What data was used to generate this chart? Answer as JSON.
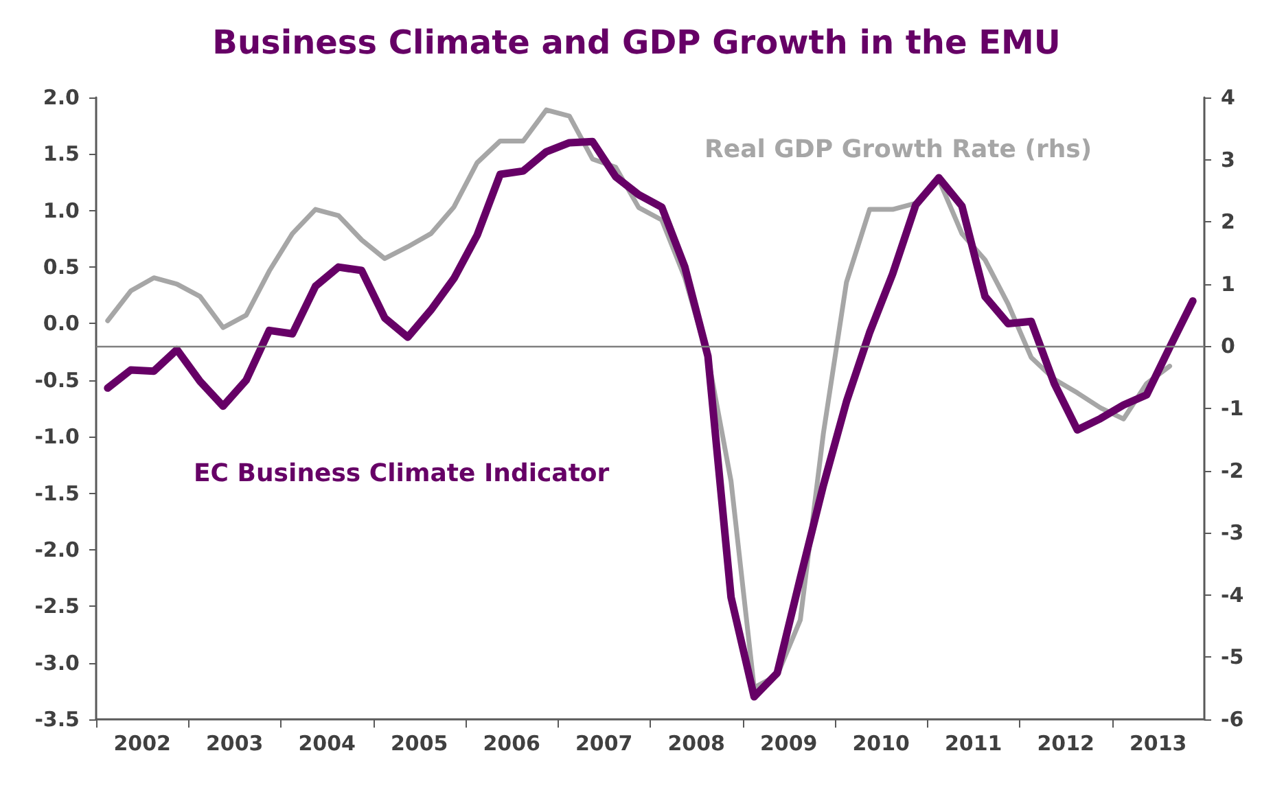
{
  "chart_data": {
    "type": "line",
    "title": "Business Climate and GDP Growth in the EMU",
    "x": [
      2002.125,
      2002.375,
      2002.625,
      2002.875,
      2003.125,
      2003.375,
      2003.625,
      2003.875,
      2004.125,
      2004.375,
      2004.625,
      2004.875,
      2005.125,
      2005.375,
      2005.625,
      2005.875,
      2006.125,
      2006.375,
      2006.625,
      2006.875,
      2007.125,
      2007.375,
      2007.625,
      2007.875,
      2008.125,
      2008.375,
      2008.625,
      2008.875,
      2009.125,
      2009.375,
      2009.625,
      2009.875,
      2010.125,
      2010.375,
      2010.625,
      2010.875,
      2011.125,
      2011.375,
      2011.625,
      2011.875,
      2012.125,
      2012.375,
      2012.625,
      2012.875,
      2013.125,
      2013.375,
      2013.625,
      2013.875
    ],
    "series": [
      {
        "name": "Real GDP Growth Rate (rhs)",
        "color": "#a6a6a6",
        "axis": "y2",
        "values": [
          0.41,
          0.89,
          1.1,
          1.0,
          0.8,
          0.3,
          0.5,
          1.21,
          1.81,
          2.2,
          2.1,
          1.71,
          1.41,
          1.6,
          1.81,
          2.24,
          2.95,
          3.3,
          3.3,
          3.8,
          3.7,
          3.01,
          2.88,
          2.23,
          2.03,
          1.1,
          -0.18,
          -2.17,
          -5.49,
          -5.29,
          -4.4,
          -1.4,
          1.03,
          2.2,
          2.2,
          2.3,
          2.68,
          1.81,
          1.39,
          0.68,
          -0.18,
          -0.53,
          -0.75,
          -0.99,
          -1.17,
          -0.6,
          -0.32,
          null
        ]
      },
      {
        "name": "EC Business Climate Indicator",
        "color": "#660066",
        "values": [
          -0.57,
          -0.41,
          -0.42,
          -0.23,
          -0.51,
          -0.73,
          -0.5,
          -0.06,
          -0.09,
          0.33,
          0.5,
          0.47,
          0.05,
          -0.12,
          0.12,
          0.4,
          0.78,
          1.32,
          1.35,
          1.52,
          1.6,
          1.61,
          1.3,
          1.14,
          1.03,
          0.5,
          -0.29,
          -2.42,
          -3.3,
          -3.09,
          -2.25,
          -1.43,
          -0.69,
          -0.08,
          0.44,
          1.05,
          1.29,
          1.04,
          0.24,
          0.0,
          0.02,
          -0.53,
          -0.94,
          -0.84,
          -0.72,
          -0.63,
          -0.21,
          0.2
        ]
      }
    ],
    "xlim": [
      2002,
      2014
    ],
    "xticks": [
      {
        "value": 2002,
        "label": null
      },
      {
        "value": 2002.5,
        "label": "2002"
      },
      {
        "value": 2003,
        "label": null
      },
      {
        "value": 2003.5,
        "label": "2003"
      },
      {
        "value": 2004,
        "label": null
      },
      {
        "value": 2004.5,
        "label": "2004"
      },
      {
        "value": 2005,
        "label": null
      },
      {
        "value": 2005.5,
        "label": "2005"
      },
      {
        "value": 2006,
        "label": null
      },
      {
        "value": 2006.5,
        "label": "2006"
      },
      {
        "value": 2007,
        "label": null
      },
      {
        "value": 2007.5,
        "label": "2007"
      },
      {
        "value": 2008,
        "label": null
      },
      {
        "value": 2008.5,
        "label": "2008"
      },
      {
        "value": 2009,
        "label": null
      },
      {
        "value": 2009.5,
        "label": "2009"
      },
      {
        "value": 2010,
        "label": null
      },
      {
        "value": 2010.5,
        "label": "2010"
      },
      {
        "value": 2011,
        "label": null
      },
      {
        "value": 2011.5,
        "label": "2011"
      },
      {
        "value": 2012,
        "label": null
      },
      {
        "value": 2012.5,
        "label": "2012"
      },
      {
        "value": 2013,
        "label": null
      },
      {
        "value": 2013.5,
        "label": "2013"
      }
    ],
    "ylim": [
      -3.5,
      2
    ],
    "yticks": [
      {
        "value": -3.5,
        "label": "-3.5"
      },
      {
        "value": -3,
        "label": "-3.0"
      },
      {
        "value": -2.5,
        "label": "-2.5"
      },
      {
        "value": -2,
        "label": "-2.0"
      },
      {
        "value": -1.5,
        "label": "-1.5"
      },
      {
        "value": -1,
        "label": "-1.0"
      },
      {
        "value": -0.5,
        "label": "-0.5"
      },
      {
        "value": 0,
        "label": "0.0"
      },
      {
        "value": 0.5,
        "label": "0.5"
      },
      {
        "value": 1,
        "label": "1.0"
      },
      {
        "value": 1.5,
        "label": "1.5"
      },
      {
        "value": 2,
        "label": "2.0"
      }
    ],
    "y2lim": [
      -6,
      4
    ],
    "y2ticks": [
      -6,
      -5,
      -4,
      -3,
      -2,
      -1,
      0,
      1,
      2,
      3,
      4
    ],
    "ref_lines": [
      {
        "axis": "y2",
        "value": 0,
        "color": "#7f7f7f"
      }
    ],
    "grid": false,
    "legend": false,
    "line_style": "solid",
    "marker": "none"
  }
}
